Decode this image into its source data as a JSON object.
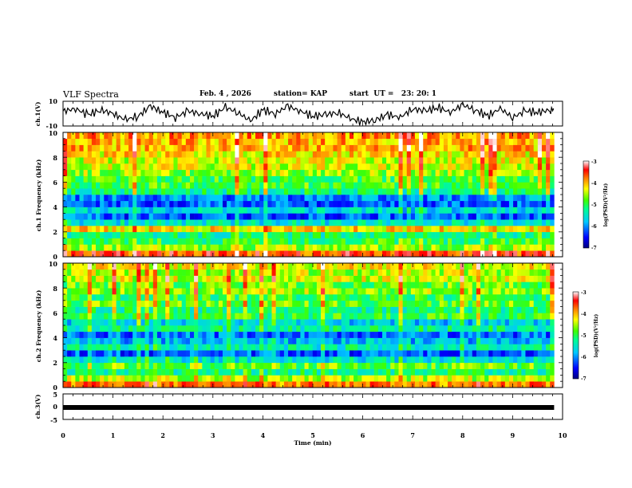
{
  "header": {
    "title": "VLF Spectra",
    "date": "Feb. 4 , 2026",
    "station": "station= KAP",
    "start": "start  UT =   23: 20: 1"
  },
  "colors": {
    "background": "#ffffff",
    "trace": "#000000",
    "colormap": [
      "#00007f",
      "#0000ff",
      "#00c8ff",
      "#00ff90",
      "#40ff00",
      "#ffff00",
      "#ff8000",
      "#ff0000",
      "#ffffff"
    ]
  },
  "chart_data": [
    {
      "id": "ch1-waveform",
      "type": "line",
      "ylabel": "ch.1(V)",
      "ylim": [
        -10,
        10
      ],
      "y_tick_labels": [
        "10",
        "-10"
      ],
      "x": [
        0,
        0.25,
        0.5,
        0.75,
        1,
        1.25,
        1.5,
        1.75,
        2,
        2.25,
        2.5,
        2.75,
        3,
        3.25,
        3.5,
        3.75,
        4,
        4.25,
        4.5,
        4.75,
        5,
        5.25,
        5.5,
        5.75,
        6,
        6.25,
        6.5,
        6.75,
        7,
        7.25,
        7.5,
        7.75,
        8,
        8.25,
        8.5,
        8.75,
        9,
        9.25,
        9.5,
        9.75
      ],
      "values": [
        2,
        4,
        -1,
        3,
        0,
        -5,
        -2,
        6,
        1,
        -3,
        2,
        0,
        -2,
        5,
        1,
        -6,
        3,
        0,
        6,
        2,
        -2,
        -1,
        1,
        -4,
        -7,
        -5,
        -1,
        -3,
        4,
        2,
        5,
        1,
        7,
        3,
        -2,
        4,
        -3,
        2,
        1,
        3
      ]
    },
    {
      "id": "ch1-spectrogram",
      "type": "heatmap",
      "ylabel": "ch.1 Frequency (kHz)",
      "y_tick_labels": [
        "0",
        "2",
        "4",
        "6",
        "8",
        "10"
      ],
      "ylim": [
        0,
        10
      ],
      "colorbar": {
        "label": "log(PSD)(V²/Hz)",
        "range": [
          -7,
          -3
        ],
        "tick_labels": [
          "-3",
          "-4",
          "-5",
          "-6",
          "-7"
        ]
      },
      "band_levels": [
        {
          "f": 0.25,
          "v": -3.6
        },
        {
          "f": 0.75,
          "v": -4.6
        },
        {
          "f": 1.25,
          "v": -5.0
        },
        {
          "f": 1.75,
          "v": -5.2
        },
        {
          "f": 2.25,
          "v": -4.2
        },
        {
          "f": 2.75,
          "v": -5.5
        },
        {
          "f": 3.25,
          "v": -6.2
        },
        {
          "f": 3.75,
          "v": -5.6
        },
        {
          "f": 4.25,
          "v": -6.2
        },
        {
          "f": 4.75,
          "v": -6.0
        },
        {
          "f": 5.25,
          "v": -5.2
        },
        {
          "f": 5.75,
          "v": -4.9
        },
        {
          "f": 6.25,
          "v": -4.9
        },
        {
          "f": 6.75,
          "v": -4.6
        },
        {
          "f": 7.25,
          "v": -4.4
        },
        {
          "f": 7.75,
          "v": -4.4
        },
        {
          "f": 8.25,
          "v": -4.2
        },
        {
          "f": 8.75,
          "v": -4.0
        },
        {
          "f": 9.25,
          "v": -4.0
        },
        {
          "f": 9.75,
          "v": -3.9
        }
      ]
    },
    {
      "id": "ch2-spectrogram",
      "type": "heatmap",
      "ylabel": "ch.2 Frequency (kHz)",
      "y_tick_labels": [
        "0",
        "2",
        "4",
        "6",
        "8",
        "10"
      ],
      "ylim": [
        0,
        10
      ],
      "colorbar": {
        "label": "log(PSD)(V²/Hz)",
        "range": [
          -7,
          -3
        ],
        "tick_labels": [
          "-3",
          "-4",
          "-5",
          "-6",
          "-7"
        ]
      },
      "band_levels": [
        {
          "f": 0.25,
          "v": -3.8
        },
        {
          "f": 0.75,
          "v": -4.5
        },
        {
          "f": 1.25,
          "v": -5.2
        },
        {
          "f": 1.75,
          "v": -4.8
        },
        {
          "f": 2.25,
          "v": -5.5
        },
        {
          "f": 2.75,
          "v": -6.2
        },
        {
          "f": 3.25,
          "v": -5.4
        },
        {
          "f": 3.75,
          "v": -5.8
        },
        {
          "f": 4.25,
          "v": -6.1
        },
        {
          "f": 4.75,
          "v": -5.3
        },
        {
          "f": 5.25,
          "v": -5.7
        },
        {
          "f": 5.75,
          "v": -5.0
        },
        {
          "f": 6.25,
          "v": -5.2
        },
        {
          "f": 6.75,
          "v": -4.8
        },
        {
          "f": 7.25,
          "v": -5.0
        },
        {
          "f": 7.75,
          "v": -4.6
        },
        {
          "f": 8.25,
          "v": -4.8
        },
        {
          "f": 8.75,
          "v": -4.4
        },
        {
          "f": 9.25,
          "v": -4.5
        },
        {
          "f": 9.75,
          "v": -4.3
        }
      ]
    },
    {
      "id": "ch3-waveform",
      "type": "line",
      "ylabel": "ch.3(V)",
      "ylim": [
        -5,
        5
      ],
      "y_tick_labels": [
        "5",
        "0",
        "-5"
      ],
      "x": [
        0,
        9.83
      ],
      "values": [
        0,
        0
      ]
    }
  ],
  "xaxis": {
    "label": "Time (min)",
    "range": [
      0,
      10
    ],
    "tick_labels": [
      "0",
      "1",
      "2",
      "3",
      "4",
      "5",
      "6",
      "7",
      "8",
      "9",
      "10"
    ]
  }
}
